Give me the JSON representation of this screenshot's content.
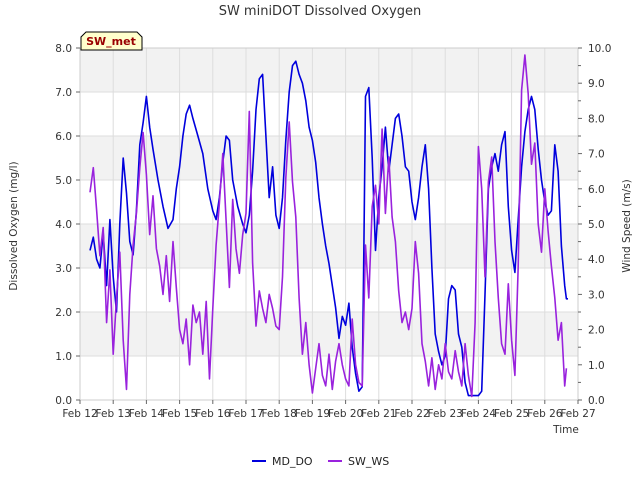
{
  "chart_data": {
    "type": "line",
    "title": "SW miniDOT Dissolved Oxygen",
    "badge": "SW_met",
    "xlabel": "Time",
    "ylabel_left": "Dissolved Oxygen (mg/l)",
    "ylabel_right": "Wind Speed (m/s)",
    "xlim": [
      12,
      27
    ],
    "ylim_left": [
      0,
      8
    ],
    "ylim_right": [
      0,
      10
    ],
    "x_ticks": [
      {
        "value": 12,
        "label": "Feb 12"
      },
      {
        "value": 13,
        "label": "Feb 13"
      },
      {
        "value": 14,
        "label": "Feb 14"
      },
      {
        "value": 15,
        "label": "Feb 15"
      },
      {
        "value": 16,
        "label": "Feb 16"
      },
      {
        "value": 17,
        "label": "Feb 17"
      },
      {
        "value": 18,
        "label": "Feb 18"
      },
      {
        "value": 19,
        "label": "Feb 19"
      },
      {
        "value": 20,
        "label": "Feb 20"
      },
      {
        "value": 21,
        "label": "Feb 21"
      },
      {
        "value": 22,
        "label": "Feb 22"
      },
      {
        "value": 23,
        "label": "Feb 23"
      },
      {
        "value": 24,
        "label": "Feb 24"
      },
      {
        "value": 25,
        "label": "Feb 25"
      },
      {
        "value": 26,
        "label": "Feb 26"
      },
      {
        "value": 27,
        "label": "Feb 27"
      }
    ],
    "y_ticks_left": [
      {
        "value": 0,
        "label": "0.0"
      },
      {
        "value": 1,
        "label": "1.0"
      },
      {
        "value": 2,
        "label": "2.0"
      },
      {
        "value": 3,
        "label": "3.0"
      },
      {
        "value": 4,
        "label": "4.0"
      },
      {
        "value": 5,
        "label": "5.0"
      },
      {
        "value": 6,
        "label": "6.0"
      },
      {
        "value": 7,
        "label": "7.0"
      },
      {
        "value": 8,
        "label": "8.0"
      }
    ],
    "y_ticks_right": [
      {
        "value": 0,
        "label": "0.0"
      },
      {
        "value": 1,
        "label": "1.0"
      },
      {
        "value": 2,
        "label": "2.0"
      },
      {
        "value": 3,
        "label": "3.0"
      },
      {
        "value": 4,
        "label": "4.0"
      },
      {
        "value": 5,
        "label": "5.0"
      },
      {
        "value": 6,
        "label": "6.0"
      },
      {
        "value": 7,
        "label": "7.0"
      },
      {
        "value": 8,
        "label": "8.0"
      },
      {
        "value": 9,
        "label": "9.0"
      },
      {
        "value": 10,
        "label": "10.0"
      }
    ],
    "grid": true,
    "legend_position": "bottom-center",
    "series": [
      {
        "name": "MD_DO",
        "axis": "left",
        "color": "#0000dd",
        "points": [
          [
            12.3,
            3.4
          ],
          [
            12.4,
            3.7
          ],
          [
            12.5,
            3.2
          ],
          [
            12.6,
            3.0
          ],
          [
            12.7,
            3.8
          ],
          [
            12.8,
            2.6
          ],
          [
            12.9,
            4.1
          ],
          [
            13.0,
            2.8
          ],
          [
            13.1,
            2.0
          ],
          [
            13.2,
            4.0
          ],
          [
            13.3,
            5.5
          ],
          [
            13.4,
            4.7
          ],
          [
            13.5,
            3.6
          ],
          [
            13.6,
            3.3
          ],
          [
            13.7,
            4.3
          ],
          [
            13.8,
            5.8
          ],
          [
            13.9,
            6.3
          ],
          [
            14.0,
            6.9
          ],
          [
            14.1,
            6.2
          ],
          [
            14.2,
            5.7
          ],
          [
            14.35,
            5.0
          ],
          [
            14.5,
            4.4
          ],
          [
            14.65,
            3.9
          ],
          [
            14.8,
            4.1
          ],
          [
            14.9,
            4.8
          ],
          [
            15.0,
            5.3
          ],
          [
            15.1,
            6.0
          ],
          [
            15.2,
            6.5
          ],
          [
            15.3,
            6.7
          ],
          [
            15.4,
            6.4
          ],
          [
            15.55,
            6.0
          ],
          [
            15.7,
            5.6
          ],
          [
            15.85,
            4.8
          ],
          [
            16.0,
            4.3
          ],
          [
            16.1,
            4.1
          ],
          [
            16.2,
            4.6
          ],
          [
            16.3,
            5.4
          ],
          [
            16.4,
            6.0
          ],
          [
            16.5,
            5.9
          ],
          [
            16.6,
            5.0
          ],
          [
            16.75,
            4.4
          ],
          [
            16.9,
            4.0
          ],
          [
            17.0,
            3.8
          ],
          [
            17.1,
            4.2
          ],
          [
            17.2,
            5.2
          ],
          [
            17.3,
            6.6
          ],
          [
            17.4,
            7.3
          ],
          [
            17.5,
            7.4
          ],
          [
            17.6,
            6.0
          ],
          [
            17.7,
            4.6
          ],
          [
            17.8,
            5.3
          ],
          [
            17.9,
            4.2
          ],
          [
            18.0,
            3.9
          ],
          [
            18.1,
            4.6
          ],
          [
            18.2,
            5.9
          ],
          [
            18.3,
            7.0
          ],
          [
            18.4,
            7.6
          ],
          [
            18.5,
            7.7
          ],
          [
            18.6,
            7.4
          ],
          [
            18.7,
            7.2
          ],
          [
            18.8,
            6.8
          ],
          [
            18.9,
            6.2
          ],
          [
            19.0,
            5.9
          ],
          [
            19.1,
            5.4
          ],
          [
            19.2,
            4.6
          ],
          [
            19.3,
            4.0
          ],
          [
            19.4,
            3.5
          ],
          [
            19.5,
            3.1
          ],
          [
            19.6,
            2.6
          ],
          [
            19.7,
            2.1
          ],
          [
            19.8,
            1.4
          ],
          [
            19.9,
            1.9
          ],
          [
            20.0,
            1.7
          ],
          [
            20.1,
            2.2
          ],
          [
            20.2,
            1.2
          ],
          [
            20.3,
            0.6
          ],
          [
            20.4,
            0.2
          ],
          [
            20.5,
            0.3
          ],
          [
            20.55,
            3.5
          ],
          [
            20.6,
            6.9
          ],
          [
            20.7,
            7.1
          ],
          [
            20.8,
            5.5
          ],
          [
            20.9,
            3.4
          ],
          [
            21.0,
            4.6
          ],
          [
            21.1,
            5.3
          ],
          [
            21.2,
            6.2
          ],
          [
            21.3,
            5.2
          ],
          [
            21.4,
            5.8
          ],
          [
            21.5,
            6.4
          ],
          [
            21.6,
            6.5
          ],
          [
            21.7,
            6.0
          ],
          [
            21.8,
            5.3
          ],
          [
            21.9,
            5.2
          ],
          [
            22.0,
            4.5
          ],
          [
            22.1,
            4.1
          ],
          [
            22.2,
            4.6
          ],
          [
            22.3,
            5.3
          ],
          [
            22.4,
            5.8
          ],
          [
            22.5,
            4.8
          ],
          [
            22.6,
            3.0
          ],
          [
            22.7,
            1.5
          ],
          [
            22.8,
            1.1
          ],
          [
            22.9,
            0.8
          ],
          [
            23.0,
            1.0
          ],
          [
            23.1,
            2.3
          ],
          [
            23.2,
            2.6
          ],
          [
            23.3,
            2.5
          ],
          [
            23.4,
            1.5
          ],
          [
            23.5,
            1.2
          ],
          [
            23.6,
            0.4
          ],
          [
            23.7,
            0.1
          ],
          [
            23.9,
            0.1
          ],
          [
            24.0,
            0.1
          ],
          [
            24.1,
            0.2
          ],
          [
            24.2,
            2.4
          ],
          [
            24.3,
            4.8
          ],
          [
            24.4,
            5.3
          ],
          [
            24.5,
            5.6
          ],
          [
            24.6,
            5.2
          ],
          [
            24.7,
            5.8
          ],
          [
            24.8,
            6.1
          ],
          [
            24.9,
            4.4
          ],
          [
            25.0,
            3.4
          ],
          [
            25.1,
            2.9
          ],
          [
            25.2,
            4.1
          ],
          [
            25.3,
            5.3
          ],
          [
            25.4,
            6.1
          ],
          [
            25.5,
            6.6
          ],
          [
            25.6,
            6.9
          ],
          [
            25.7,
            6.6
          ],
          [
            25.8,
            5.7
          ],
          [
            25.9,
            5.0
          ],
          [
            26.0,
            4.5
          ],
          [
            26.1,
            4.2
          ],
          [
            26.2,
            4.3
          ],
          [
            26.3,
            5.8
          ],
          [
            26.4,
            5.2
          ],
          [
            26.5,
            3.5
          ],
          [
            26.6,
            2.6
          ],
          [
            26.65,
            2.3
          ],
          [
            26.7,
            2.3
          ]
        ]
      },
      {
        "name": "SW_WS",
        "axis": "right",
        "color": "#9922dd",
        "points": [
          [
            12.3,
            5.9
          ],
          [
            12.4,
            6.6
          ],
          [
            12.5,
            5.4
          ],
          [
            12.6,
            4.1
          ],
          [
            12.7,
            4.9
          ],
          [
            12.8,
            2.2
          ],
          [
            12.9,
            3.7
          ],
          [
            13.0,
            1.3
          ],
          [
            13.1,
            2.9
          ],
          [
            13.2,
            4.2
          ],
          [
            13.3,
            1.7
          ],
          [
            13.4,
            0.3
          ],
          [
            13.5,
            3.0
          ],
          [
            13.6,
            4.4
          ],
          [
            13.7,
            5.3
          ],
          [
            13.8,
            6.6
          ],
          [
            13.9,
            7.6
          ],
          [
            14.0,
            6.4
          ],
          [
            14.1,
            4.7
          ],
          [
            14.2,
            5.8
          ],
          [
            14.3,
            4.3
          ],
          [
            14.4,
            3.8
          ],
          [
            14.5,
            3.0
          ],
          [
            14.6,
            4.1
          ],
          [
            14.7,
            2.8
          ],
          [
            14.8,
            4.5
          ],
          [
            14.9,
            3.2
          ],
          [
            15.0,
            2.0
          ],
          [
            15.1,
            1.6
          ],
          [
            15.2,
            2.3
          ],
          [
            15.3,
            1.0
          ],
          [
            15.4,
            2.7
          ],
          [
            15.5,
            2.2
          ],
          [
            15.6,
            2.5
          ],
          [
            15.7,
            1.3
          ],
          [
            15.8,
            2.8
          ],
          [
            15.9,
            0.6
          ],
          [
            16.0,
            2.6
          ],
          [
            16.1,
            4.4
          ],
          [
            16.2,
            5.6
          ],
          [
            16.3,
            7.0
          ],
          [
            16.4,
            5.1
          ],
          [
            16.5,
            3.2
          ],
          [
            16.6,
            5.7
          ],
          [
            16.7,
            4.3
          ],
          [
            16.8,
            3.6
          ],
          [
            16.9,
            4.7
          ],
          [
            17.0,
            5.3
          ],
          [
            17.1,
            8.2
          ],
          [
            17.2,
            3.9
          ],
          [
            17.3,
            2.1
          ],
          [
            17.4,
            3.1
          ],
          [
            17.5,
            2.6
          ],
          [
            17.6,
            2.2
          ],
          [
            17.7,
            3.0
          ],
          [
            17.8,
            2.6
          ],
          [
            17.9,
            2.1
          ],
          [
            18.0,
            2.0
          ],
          [
            18.1,
            3.5
          ],
          [
            18.2,
            6.3
          ],
          [
            18.3,
            7.9
          ],
          [
            18.4,
            6.2
          ],
          [
            18.5,
            5.2
          ],
          [
            18.6,
            2.9
          ],
          [
            18.7,
            1.3
          ],
          [
            18.8,
            2.2
          ],
          [
            18.9,
            1.0
          ],
          [
            19.0,
            0.2
          ],
          [
            19.1,
            0.9
          ],
          [
            19.2,
            1.6
          ],
          [
            19.3,
            0.7
          ],
          [
            19.4,
            0.4
          ],
          [
            19.5,
            1.3
          ],
          [
            19.6,
            0.3
          ],
          [
            19.7,
            1.1
          ],
          [
            19.8,
            1.6
          ],
          [
            19.9,
            1.0
          ],
          [
            20.0,
            0.6
          ],
          [
            20.1,
            0.4
          ],
          [
            20.2,
            2.3
          ],
          [
            20.3,
            1.0
          ],
          [
            20.4,
            0.5
          ],
          [
            20.5,
            0.4
          ],
          [
            20.6,
            4.4
          ],
          [
            20.7,
            2.9
          ],
          [
            20.8,
            5.5
          ],
          [
            20.9,
            6.1
          ],
          [
            21.0,
            5.0
          ],
          [
            21.1,
            7.7
          ],
          [
            21.2,
            5.3
          ],
          [
            21.3,
            6.9
          ],
          [
            21.4,
            5.2
          ],
          [
            21.5,
            4.5
          ],
          [
            21.6,
            3.1
          ],
          [
            21.7,
            2.2
          ],
          [
            21.8,
            2.5
          ],
          [
            21.9,
            2.0
          ],
          [
            22.0,
            2.6
          ],
          [
            22.1,
            4.5
          ],
          [
            22.2,
            3.6
          ],
          [
            22.3,
            1.6
          ],
          [
            22.4,
            1.1
          ],
          [
            22.5,
            0.4
          ],
          [
            22.6,
            1.2
          ],
          [
            22.7,
            0.3
          ],
          [
            22.8,
            1.0
          ],
          [
            22.9,
            0.6
          ],
          [
            23.0,
            1.6
          ],
          [
            23.1,
            0.8
          ],
          [
            23.2,
            0.6
          ],
          [
            23.3,
            1.4
          ],
          [
            23.4,
            0.8
          ],
          [
            23.5,
            0.4
          ],
          [
            23.6,
            1.6
          ],
          [
            23.7,
            0.7
          ],
          [
            23.8,
            0.1
          ],
          [
            23.9,
            2.2
          ],
          [
            24.0,
            7.2
          ],
          [
            24.1,
            6.0
          ],
          [
            24.2,
            3.5
          ],
          [
            24.3,
            6.2
          ],
          [
            24.4,
            6.9
          ],
          [
            24.5,
            4.5
          ],
          [
            24.6,
            2.9
          ],
          [
            24.7,
            1.6
          ],
          [
            24.8,
            1.3
          ],
          [
            24.9,
            3.3
          ],
          [
            25.0,
            1.7
          ],
          [
            25.1,
            0.7
          ],
          [
            25.2,
            3.8
          ],
          [
            25.3,
            8.8
          ],
          [
            25.4,
            9.8
          ],
          [
            25.5,
            8.7
          ],
          [
            25.6,
            6.7
          ],
          [
            25.7,
            7.3
          ],
          [
            25.8,
            5.0
          ],
          [
            25.9,
            4.2
          ],
          [
            26.0,
            6.0
          ],
          [
            26.1,
            4.8
          ],
          [
            26.2,
            3.8
          ],
          [
            26.3,
            2.9
          ],
          [
            26.4,
            1.7
          ],
          [
            26.5,
            2.2
          ],
          [
            26.6,
            0.4
          ],
          [
            26.65,
            0.9
          ]
        ]
      }
    ]
  }
}
